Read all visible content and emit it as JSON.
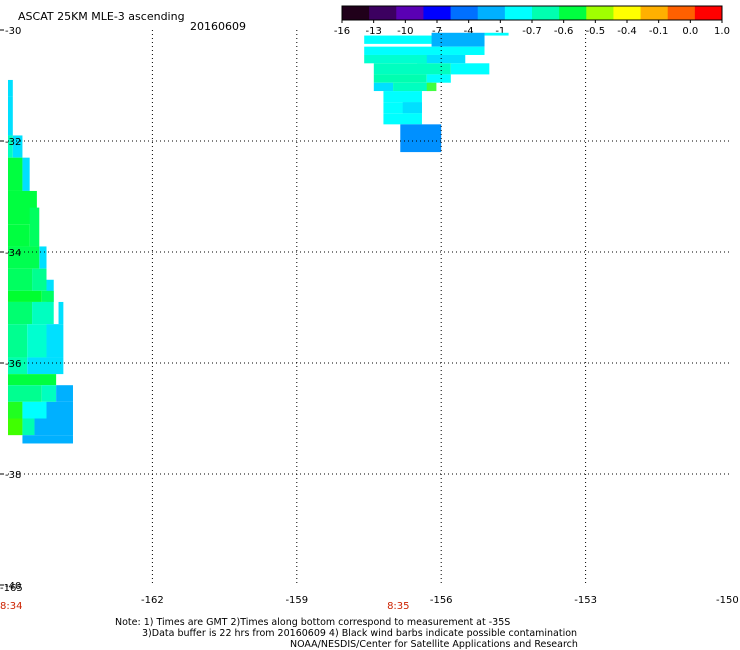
{
  "header": {
    "title": "ASCAT 25KM MLE-3 ascending",
    "date": "20160609"
  },
  "colorbar": {
    "labels": [
      "-16",
      "-13",
      "-10",
      "-7",
      "-4",
      "-1",
      "-0.7",
      "-0.6",
      "-0.5",
      "-0.4",
      "-0.1",
      "0.0",
      "1.0"
    ],
    "colors": [
      "#20001a",
      "#3c0060",
      "#5a00b4",
      "#0000ff",
      "#0070ff",
      "#00b0ff",
      "#00ffff",
      "#00ffb0",
      "#00ff40",
      "#a0ff00",
      "#ffff00",
      "#ffb000",
      "#ff6000",
      "#ff0000"
    ]
  },
  "footer": {
    "line1": "Note: 1) Times are GMT 2)Times along bottom correspond to measurement at -35S",
    "line2": "3)Data buffer is 22 hrs from 20160609 4) Black wind barbs indicate possible contamination",
    "line3": "NOAA/NESDIS/Center for Satellite Applications and Research"
  },
  "chart_data": {
    "type": "heatmap",
    "xlim": [
      -165,
      -150
    ],
    "ylim": [
      -40,
      -30
    ],
    "x_ticks": [
      {
        "value": -162,
        "label": "-162"
      },
      {
        "value": -159,
        "label": "-159"
      },
      {
        "value": -156,
        "label": "-156"
      },
      {
        "value": -153,
        "label": "-153"
      },
      {
        "value": -150,
        "label": "-150"
      }
    ],
    "y_ticks": [
      {
        "value": -30,
        "label": "-30"
      },
      {
        "value": -32,
        "label": "-32"
      },
      {
        "value": -34,
        "label": "-34"
      },
      {
        "value": -36,
        "label": "-36"
      },
      {
        "value": -38,
        "label": "-38"
      },
      {
        "value": -40,
        "label": "-40"
      }
    ],
    "x_corner_label": "-165",
    "time_labels": [
      {
        "x": -165,
        "label": "8:34"
      },
      {
        "x": -157,
        "label": "8:35"
      }
    ],
    "grid": true,
    "cells": [
      {
        "lon": [
          -157.6,
          -155.1
        ],
        "lat": [
          -30.25,
          -30.1
        ],
        "color": "#00ffff"
      },
      {
        "lon": [
          -155.1,
          -154.6
        ],
        "lat": [
          -30.1,
          -30.05
        ],
        "color": "#00ffff"
      },
      {
        "lon": [
          -156.2,
          -155.1
        ],
        "lat": [
          -30.05,
          -30.3
        ],
        "color": "#00b0ff"
      },
      {
        "lon": [
          -157.6,
          -155.1
        ],
        "lat": [
          -30.3,
          -30.45
        ],
        "color": "#00ffff"
      },
      {
        "lon": [
          -156.5,
          -155.5
        ],
        "lat": [
          -30.45,
          -30.6
        ],
        "color": "#00e0ff"
      },
      {
        "lon": [
          -157.6,
          -156.3
        ],
        "lat": [
          -30.45,
          -30.6
        ],
        "color": "#00ffd0"
      },
      {
        "lon": [
          -157.4,
          -155.8
        ],
        "lat": [
          -30.6,
          -30.8
        ],
        "color": "#00ffc0"
      },
      {
        "lon": [
          -155.8,
          -155.0
        ],
        "lat": [
          -30.6,
          -30.8
        ],
        "color": "#00ffff"
      },
      {
        "lon": [
          -157.4,
          -156.3
        ],
        "lat": [
          -30.8,
          -30.95
        ],
        "color": "#00ffb0"
      },
      {
        "lon": [
          -156.3,
          -155.8
        ],
        "lat": [
          -30.8,
          -30.95
        ],
        "color": "#00ffff"
      },
      {
        "lon": [
          -157.4,
          -157.0
        ],
        "lat": [
          -30.95,
          -31.1
        ],
        "color": "#00e0ff"
      },
      {
        "lon": [
          -157.0,
          -156.2
        ],
        "lat": [
          -30.95,
          -31.1
        ],
        "color": "#00ffc0"
      },
      {
        "lon": [
          -156.3,
          -156.1
        ],
        "lat": [
          -30.95,
          -31.1
        ],
        "color": "#40ff40"
      },
      {
        "lon": [
          -157.2,
          -156.4
        ],
        "lat": [
          -31.1,
          -31.3
        ],
        "color": "#00ffff"
      },
      {
        "lon": [
          -157.2,
          -156.4
        ],
        "lat": [
          -31.3,
          -31.5
        ],
        "color": "#00ffff"
      },
      {
        "lon": [
          -156.8,
          -156.4
        ],
        "lat": [
          -31.3,
          -31.5
        ],
        "color": "#00e0ff"
      },
      {
        "lon": [
          -157.2,
          -156.4
        ],
        "lat": [
          -31.5,
          -31.7
        ],
        "color": "#00ffff"
      },
      {
        "lon": [
          -156.85,
          -156.0
        ],
        "lat": [
          -31.7,
          -32.2
        ],
        "color": "#0090ff"
      },
      {
        "lon": [
          -165.0,
          -164.9
        ],
        "lat": [
          -30.9,
          -31.2
        ],
        "color": "#00e0ff"
      },
      {
        "lon": [
          -165.0,
          -164.9
        ],
        "lat": [
          -31.2,
          -31.9
        ],
        "color": "#00e0ff"
      },
      {
        "lon": [
          -165.0,
          -164.9
        ],
        "lat": [
          -31.9,
          -32.3
        ],
        "color": "#00ffc0"
      },
      {
        "lon": [
          -164.9,
          -164.7
        ],
        "lat": [
          -31.9,
          -32.3
        ],
        "color": "#00e0ff"
      },
      {
        "lon": [
          -165.0,
          -164.7
        ],
        "lat": [
          -32.3,
          -32.9
        ],
        "color": "#00ff40"
      },
      {
        "lon": [
          -164.7,
          -164.55
        ],
        "lat": [
          -32.3,
          -32.9
        ],
        "color": "#00e0ff"
      },
      {
        "lon": [
          -165.0,
          -164.4
        ],
        "lat": [
          -32.9,
          -33.5
        ],
        "color": "#00ff40"
      },
      {
        "lon": [
          -164.55,
          -164.35
        ],
        "lat": [
          -33.2,
          -33.9
        ],
        "color": "#00ff60"
      },
      {
        "lon": [
          -165.0,
          -164.55
        ],
        "lat": [
          -33.5,
          -33.9
        ],
        "color": "#00ff40"
      },
      {
        "lon": [
          -164.35,
          -164.2
        ],
        "lat": [
          -33.9,
          -34.3
        ],
        "color": "#00e0ff"
      },
      {
        "lon": [
          -165.0,
          -164.35
        ],
        "lat": [
          -33.9,
          -34.3
        ],
        "color": "#00ff50"
      },
      {
        "lon": [
          -165.0,
          -164.5
        ],
        "lat": [
          -34.3,
          -34.7
        ],
        "color": "#00ff60"
      },
      {
        "lon": [
          -164.5,
          -164.2
        ],
        "lat": [
          -34.3,
          -34.7
        ],
        "color": "#00ff90"
      },
      {
        "lon": [
          -164.2,
          -164.05
        ],
        "lat": [
          -34.5,
          -34.9
        ],
        "color": "#00e0ff"
      },
      {
        "lon": [
          -165.0,
          -164.3
        ],
        "lat": [
          -34.7,
          -34.9
        ],
        "color": "#00ff30"
      },
      {
        "lon": [
          -164.3,
          -164.05
        ],
        "lat": [
          -34.7,
          -34.9
        ],
        "color": "#00ff60"
      },
      {
        "lon": [
          -165.0,
          -164.5
        ],
        "lat": [
          -34.9,
          -35.3
        ],
        "color": "#00ff70"
      },
      {
        "lon": [
          -164.5,
          -164.05
        ],
        "lat": [
          -34.9,
          -35.3
        ],
        "color": "#00ffc0"
      },
      {
        "lon": [
          -163.95,
          -163.85
        ],
        "lat": [
          -34.9,
          -35.3
        ],
        "color": "#00e0ff"
      },
      {
        "lon": [
          -165.0,
          -164.6
        ],
        "lat": [
          -35.3,
          -35.9
        ],
        "color": "#00ff90"
      },
      {
        "lon": [
          -164.6,
          -164.2
        ],
        "lat": [
          -35.3,
          -35.9
        ],
        "color": "#00ffd0"
      },
      {
        "lon": [
          -164.2,
          -163.85
        ],
        "lat": [
          -35.3,
          -35.9
        ],
        "color": "#00e0ff"
      },
      {
        "lon": [
          -165.0,
          -164.6
        ],
        "lat": [
          -35.9,
          -36.2
        ],
        "color": "#00ffb0"
      },
      {
        "lon": [
          -164.6,
          -163.85
        ],
        "lat": [
          -35.9,
          -36.2
        ],
        "color": "#00e0ff"
      },
      {
        "lon": [
          -165.0,
          -164.0
        ],
        "lat": [
          -36.2,
          -36.4
        ],
        "color": "#00ff40"
      },
      {
        "lon": [
          -165.0,
          -164.3
        ],
        "lat": [
          -36.4,
          -36.7
        ],
        "color": "#00ff90"
      },
      {
        "lon": [
          -164.3,
          -164.0
        ],
        "lat": [
          -36.4,
          -36.7
        ],
        "color": "#00ffc0"
      },
      {
        "lon": [
          -164.0,
          -163.65
        ],
        "lat": [
          -36.4,
          -36.7
        ],
        "color": "#00b0ff"
      },
      {
        "lon": [
          -165.0,
          -164.7
        ],
        "lat": [
          -36.7,
          -37.0
        ],
        "color": "#20ff20"
      },
      {
        "lon": [
          -164.7,
          -164.2
        ],
        "lat": [
          -36.7,
          -37.0
        ],
        "color": "#00ffff"
      },
      {
        "lon": [
          -164.2,
          -163.65
        ],
        "lat": [
          -36.7,
          -37.0
        ],
        "color": "#00b0ff"
      },
      {
        "lon": [
          -165.0,
          -164.7
        ],
        "lat": [
          -37.0,
          -37.3
        ],
        "color": "#40ff00"
      },
      {
        "lon": [
          -164.7,
          -164.45
        ],
        "lat": [
          -37.0,
          -37.3
        ],
        "color": "#00ffb0"
      },
      {
        "lon": [
          -164.45,
          -163.65
        ],
        "lat": [
          -37.0,
          -37.3
        ],
        "color": "#00b0ff"
      },
      {
        "lon": [
          -164.7,
          -163.65
        ],
        "lat": [
          -37.3,
          -37.45
        ],
        "color": "#00b0ff"
      }
    ]
  }
}
